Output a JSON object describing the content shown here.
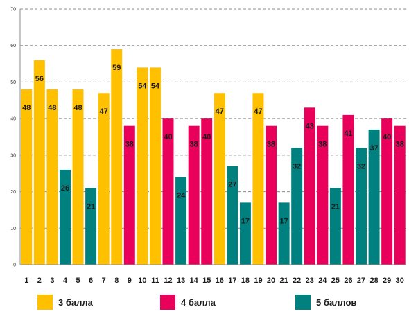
{
  "chart_data": {
    "type": "bar",
    "categories": [
      "1",
      "2",
      "3",
      "4",
      "5",
      "6",
      "7",
      "8",
      "9",
      "10",
      "11",
      "12",
      "13",
      "14",
      "15",
      "16",
      "17",
      "18",
      "19",
      "20",
      "21",
      "22",
      "23",
      "24",
      "25",
      "26",
      "27",
      "28",
      "29",
      "30"
    ],
    "values": [
      48,
      56,
      48,
      26,
      48,
      21,
      47,
      59,
      38,
      54,
      54,
      40,
      24,
      38,
      40,
      47,
      27,
      17,
      47,
      38,
      17,
      32,
      43,
      38,
      21,
      41,
      32,
      37,
      40,
      38
    ],
    "groups": [
      "3 балла",
      "3 балла",
      "3 балла",
      "5 баллов",
      "3 балла",
      "5 баллов",
      "3 балла",
      "3 балла",
      "4 балла",
      "3 балла",
      "3 балла",
      "4 балла",
      "5 баллов",
      "4 балла",
      "4 балла",
      "3 балла",
      "5 баллов",
      "5 баллов",
      "3 балла",
      "4 балла",
      "5 баллов",
      "5 баллов",
      "4 балла",
      "4 балла",
      "5 баллов",
      "4 балла",
      "5 баллов",
      "5 баллов",
      "4 балла",
      "4 балла"
    ],
    "legend": [
      {
        "name": "3 балла",
        "color": "#FFC000"
      },
      {
        "name": "4 балла",
        "color": "#E8005A"
      },
      {
        "name": "5 баллов",
        "color": "#00807F"
      }
    ],
    "yticks": [
      "0",
      "10",
      "20",
      "30",
      "40",
      "50",
      "60",
      "70"
    ],
    "ylim": [
      0,
      70
    ],
    "grid": true,
    "legend_position": "bottom"
  }
}
